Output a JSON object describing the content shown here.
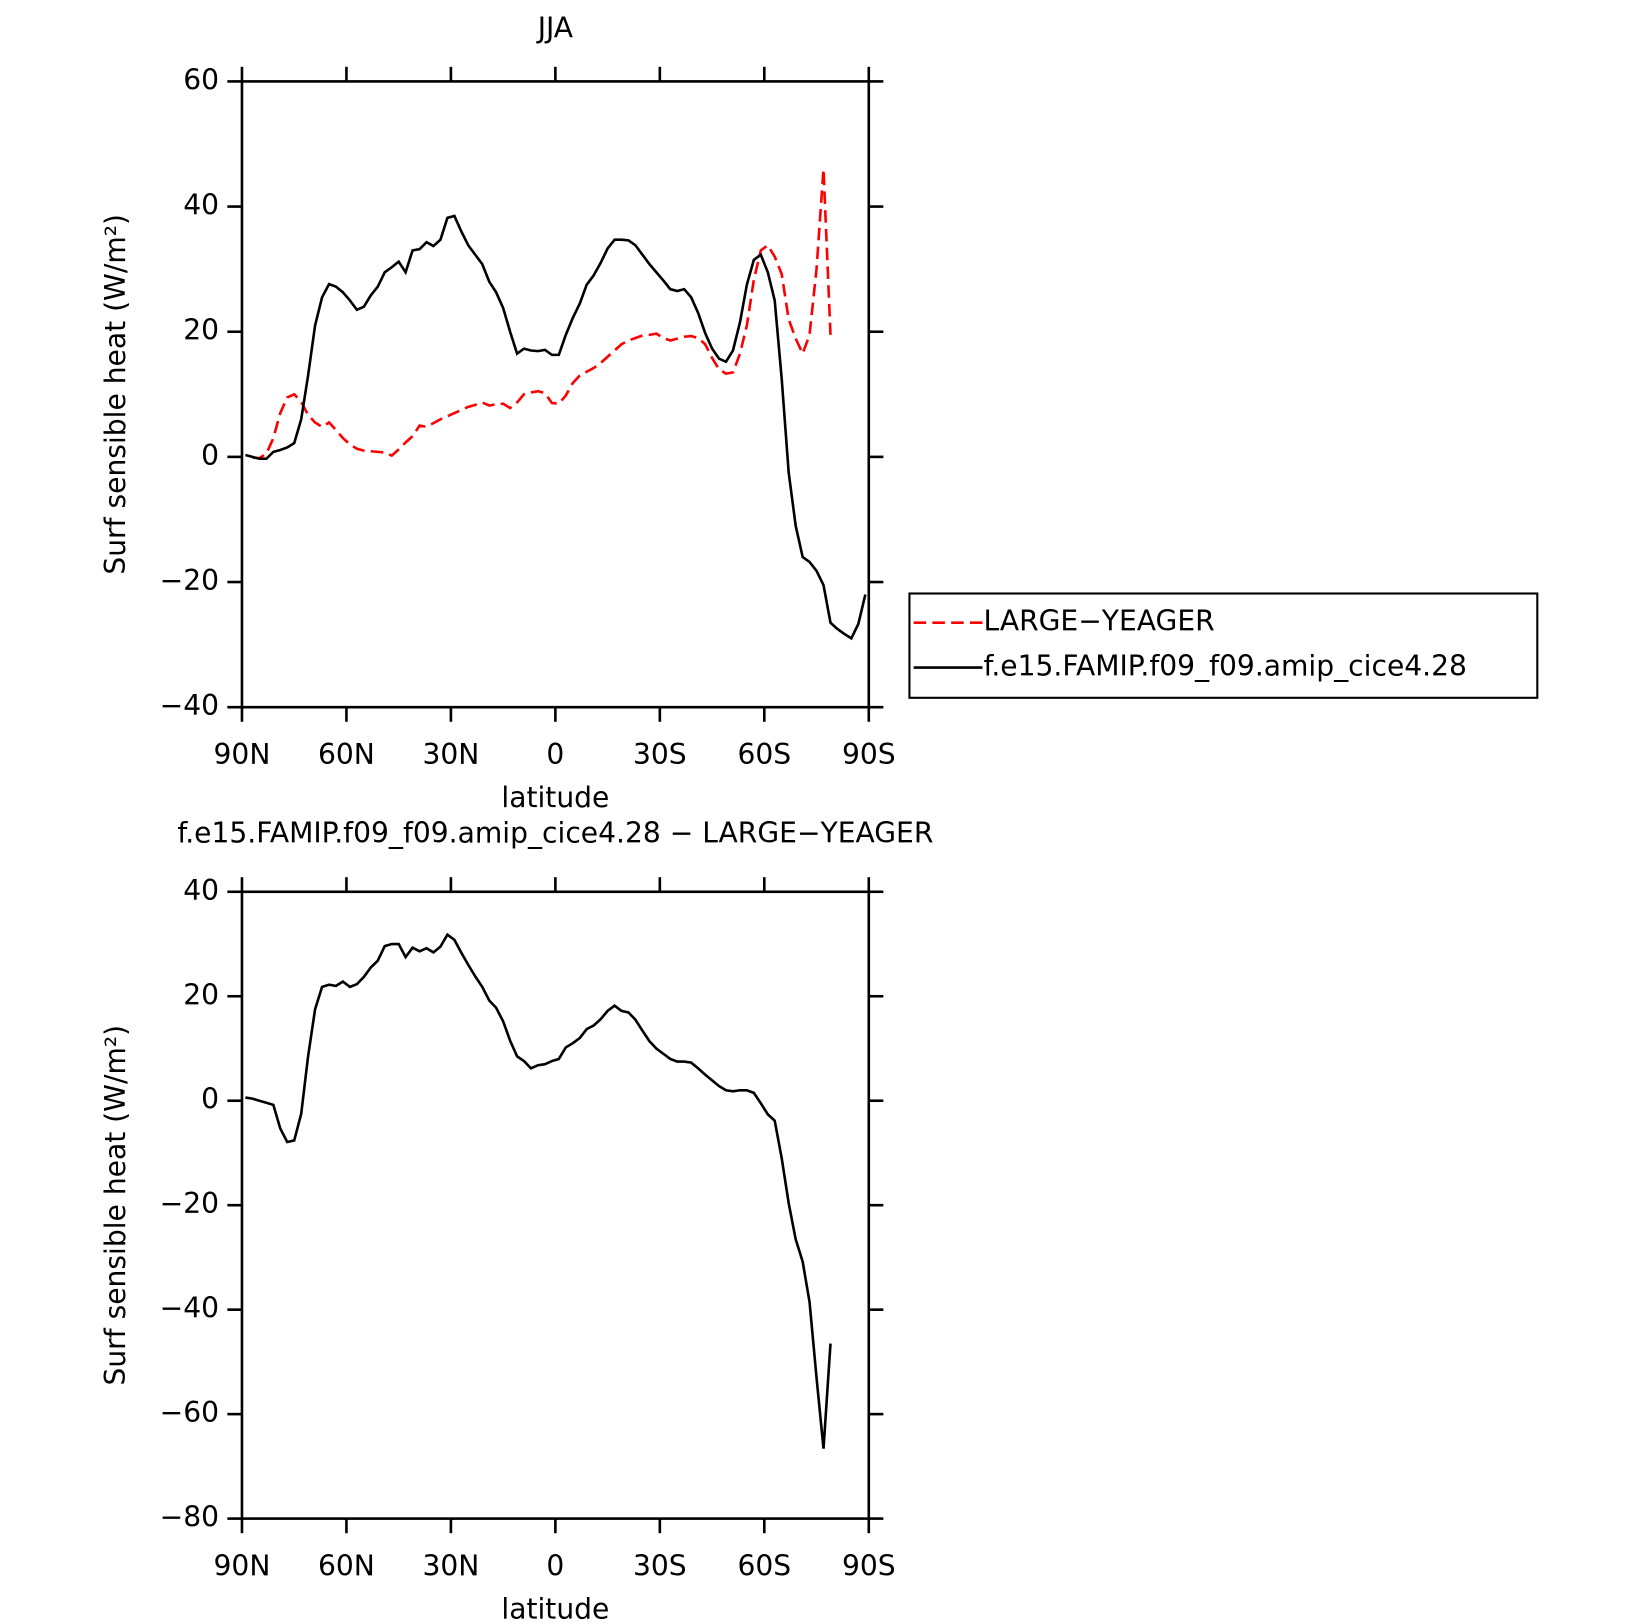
{
  "chart_data": [
    {
      "type": "line",
      "title": "JJA",
      "xlabel": "latitude",
      "ylabel": "Surf sensible heat (W/m²)",
      "x": [
        89,
        87,
        85,
        83,
        81,
        79,
        77,
        75,
        73,
        71,
        69,
        67,
        65,
        63,
        61,
        59,
        57,
        55,
        53,
        51,
        49,
        47,
        45,
        43,
        41,
        39,
        37,
        35,
        33,
        31,
        29,
        27,
        25,
        23,
        21,
        19,
        17,
        15,
        13,
        11,
        9,
        7,
        5,
        3,
        1,
        -1,
        -3,
        -5,
        -7,
        -9,
        -11,
        -13,
        -15,
        -17,
        -19,
        -21,
        -23,
        -25,
        -27,
        -29,
        -31,
        -33,
        -35,
        -37,
        -39,
        -41,
        -43,
        -45,
        -47,
        -49,
        -51,
        -53,
        -55,
        -57,
        -59,
        -61,
        -63,
        -65,
        -67,
        -69,
        -71,
        -73,
        -75,
        -77,
        -79,
        -81,
        -83,
        -85,
        -87,
        -89
      ],
      "xlim": [
        90,
        -90
      ],
      "xticks": [
        {
          "value": 90,
          "label": "90N"
        },
        {
          "value": 60,
          "label": "60N"
        },
        {
          "value": 30,
          "label": "30N"
        },
        0,
        {
          "value": -30,
          "label": "30S"
        },
        {
          "value": -60,
          "label": "60S"
        },
        {
          "value": -90,
          "label": "90S"
        }
      ],
      "ylim": [
        -40,
        60
      ],
      "yticks": [
        {
          "value": -40,
          "label": "−40"
        },
        {
          "value": -20,
          "label": "−20"
        },
        0,
        20,
        40,
        60
      ],
      "legend": "right",
      "series": [
        {
          "name": "LARGE−YEAGER",
          "color": "#ff0000",
          "line_style": "dashed",
          "values": [
            null,
            -0.1,
            -0.2,
            0.5,
            3,
            7,
            9.5,
            10,
            8.8,
            6.7,
            5.5,
            4.8,
            5.5,
            4.3,
            3,
            2,
            1.3,
            1,
            0.9,
            0.8,
            0.7,
            0.2,
            1.2,
            2.3,
            3.3,
            5,
            4.8,
            5.4,
            6,
            6.5,
            7,
            7.5,
            8,
            8.3,
            8.7,
            8.2,
            8.4,
            8.5,
            7.8,
            8.7,
            10,
            10.3,
            10.5,
            10.2,
            8.6,
            8.5,
            9.8,
            11.8,
            13,
            13.6,
            14.2,
            15,
            16,
            17,
            18,
            18.6,
            19,
            19.4,
            19.5,
            19.7,
            19,
            18.6,
            18.9,
            19.2,
            19.3,
            19,
            18,
            15.8,
            14,
            13.3,
            13.5,
            16.5,
            21,
            28.3,
            33,
            33.8,
            32,
            29.2,
            22,
            18.9,
            16.5,
            19.5,
            30,
            46,
            19.5,
            null,
            null,
            null,
            null,
            null
          ]
        },
        {
          "name": "f.e15.FAMIP.f09_f09.amip_cice4.28",
          "color": "#000000",
          "line_style": "solid",
          "values": [
            0.3,
            0,
            -0.3,
            -0.3,
            0.8,
            1.1,
            1.5,
            2.2,
            6,
            13,
            21,
            25.5,
            27.6,
            27.2,
            26.3,
            25,
            23.5,
            24,
            25.8,
            27.2,
            29.5,
            30.3,
            31.2,
            29.5,
            33,
            33.2,
            34.3,
            33.7,
            34.7,
            38.2,
            38.5,
            36,
            33.8,
            32.3,
            30.8,
            28,
            26.3,
            23.8,
            20,
            16.5,
            17.3,
            17,
            16.9,
            17.1,
            16.3,
            16.3,
            19.5,
            22.2,
            24.5,
            27.5,
            29,
            31,
            33.3,
            34.7,
            34.7,
            34.6,
            33.8,
            32.3,
            30.8,
            29.5,
            28.2,
            26.8,
            26.5,
            26.8,
            25.5,
            23,
            19.8,
            17.3,
            15.7,
            15.2,
            17,
            21.5,
            27.5,
            31.5,
            32.3,
            29.5,
            25,
            12.5,
            -2.5,
            -11,
            -16,
            -16.8,
            -18.2,
            -20.5,
            -26.5,
            -27.5,
            -28.3,
            -29,
            -26.7,
            -22
          ]
        }
      ]
    },
    {
      "type": "line",
      "title": "f.e15.FAMIP.f09_f09.amip_cice4.28 − LARGE−YEAGER",
      "xlabel": "latitude",
      "ylabel": "Surf sensible heat (W/m²)",
      "x": [
        89,
        87,
        85,
        83,
        81,
        79,
        77,
        75,
        73,
        71,
        69,
        67,
        65,
        63,
        61,
        59,
        57,
        55,
        53,
        51,
        49,
        47,
        45,
        43,
        41,
        39,
        37,
        35,
        33,
        31,
        29,
        27,
        25,
        23,
        21,
        19,
        17,
        15,
        13,
        11,
        9,
        7,
        5,
        3,
        1,
        -1,
        -3,
        -5,
        -7,
        -9,
        -11,
        -13,
        -15,
        -17,
        -19,
        -21,
        -23,
        -25,
        -27,
        -29,
        -31,
        -33,
        -35,
        -37,
        -39,
        -41,
        -43,
        -45,
        -47,
        -49,
        -51,
        -53,
        -55,
        -57,
        -59,
        -61,
        -63,
        -65,
        -67,
        -69,
        -71,
        -73,
        -75,
        -77,
        -79,
        -81,
        -83,
        -85,
        -87,
        -89
      ],
      "xlim": [
        90,
        -90
      ],
      "xticks": [
        {
          "value": 90,
          "label": "90N"
        },
        {
          "value": 60,
          "label": "60N"
        },
        {
          "value": 30,
          "label": "30N"
        },
        0,
        {
          "value": -30,
          "label": "30S"
        },
        {
          "value": -60,
          "label": "60S"
        },
        {
          "value": -90,
          "label": "90S"
        }
      ],
      "ylim": [
        -80,
        40
      ],
      "yticks": [
        {
          "value": -80,
          "label": "−80"
        },
        {
          "value": -60,
          "label": "−60"
        },
        {
          "value": -40,
          "label": "−40"
        },
        {
          "value": -20,
          "label": "−20"
        },
        0,
        20,
        40
      ],
      "series": [
        {
          "color": "#000000",
          "line_style": "solid",
          "values": [
            0.6,
            0.4,
            0,
            -0.4,
            -0.8,
            -5.3,
            -7.9,
            -7.6,
            -2.5,
            8.5,
            17.5,
            21.8,
            22.2,
            22,
            22.8,
            21.8,
            22.3,
            23.7,
            25.5,
            26.8,
            29.6,
            30,
            30,
            27.5,
            29.3,
            28.6,
            29.2,
            28.4,
            29.5,
            31.8,
            30.8,
            28.3,
            26,
            23.8,
            21.8,
            19.2,
            17.8,
            15.2,
            11.5,
            8.5,
            7.6,
            6.2,
            6.8,
            7,
            7.6,
            8,
            10.2,
            11,
            12,
            13.7,
            14.4,
            15.6,
            17.2,
            18.2,
            17.2,
            16.9,
            15.5,
            13.4,
            11.4,
            10,
            9,
            8,
            7.5,
            7.5,
            7.3,
            6.2,
            5,
            3.9,
            2.8,
            2,
            1.8,
            2,
            2,
            1.5,
            -0.5,
            -2.6,
            -3.8,
            -11,
            -19.6,
            -26.5,
            -30.8,
            -38.5,
            -53,
            -66.6,
            -46.5,
            null,
            null,
            null,
            null,
            null
          ]
        }
      ]
    }
  ]
}
